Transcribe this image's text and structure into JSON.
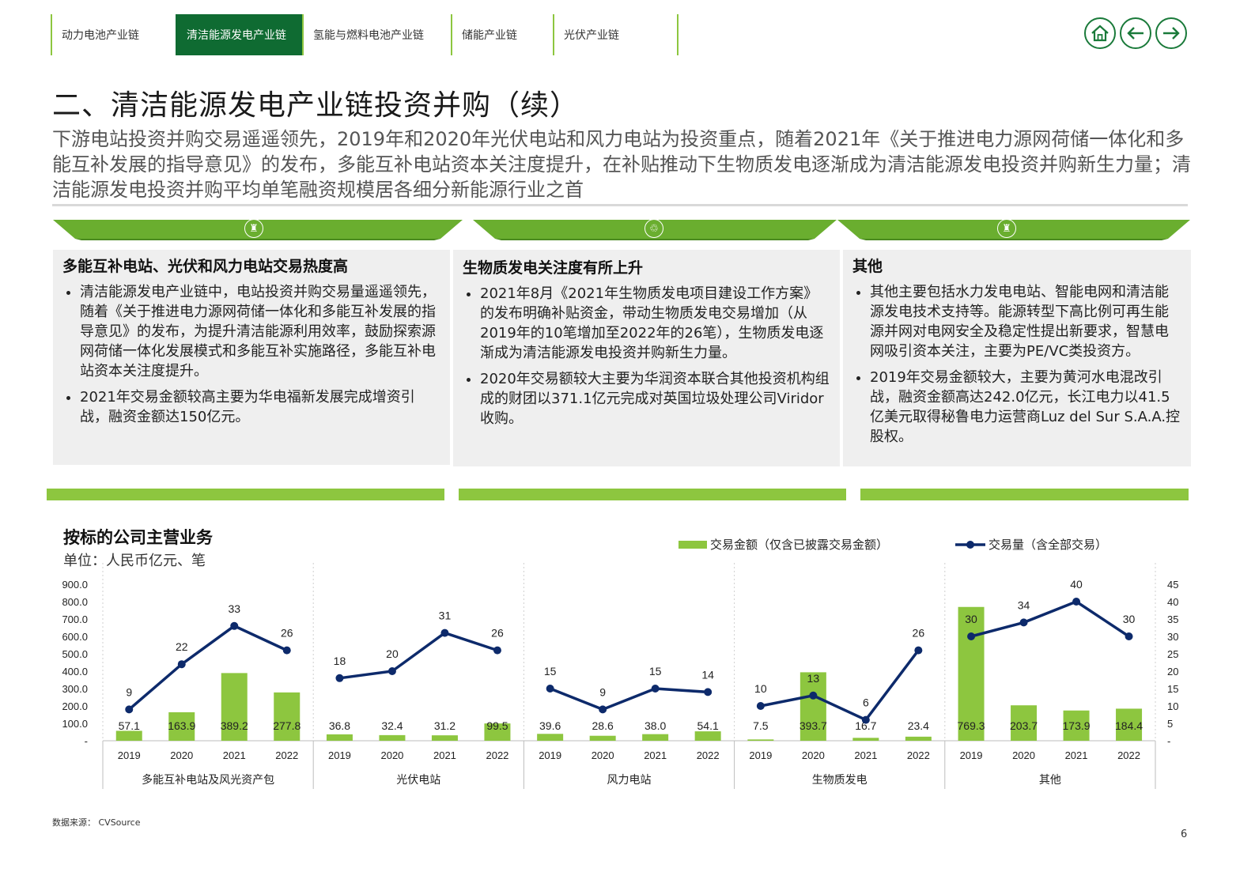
{
  "nav": {
    "tabs": [
      "动力电池产业链",
      "清洁能源发电产业链",
      "氢能与燃料电池产业链",
      "储能产业链",
      "光伏产业链"
    ],
    "active_index": 1,
    "buttons": [
      "home-icon",
      "arrow-left-icon",
      "arrow-right-icon"
    ]
  },
  "title": "二、清洁能源发电产业链投资并购（续）",
  "subtitle": "下游电站投资并购交易遥遥领先，2019年和2020年光伏电站和风力电站为投资重点，随着2021年《关于推进电力源网荷储一体化和多能互补发展的指导意见》的发布，多能互补电站资本关注度提升，在补贴推动下生物质发电逐渐成为清洁能源发电投资并购新生力量；清洁能源发电投资并购平均单笔融资规模居各细分新能源行业之首",
  "cards": [
    {
      "icon": "tower-icon",
      "heading": "多能互补电站、光伏和风力电站交易热度高",
      "bullets": [
        "清洁能源发电产业链中，电站投资并购交易量遥遥领先，随着《关于推进电力源网荷储一体化和多能互补发展的指导意见》的发布，为提升清洁能源利用效率，鼓励探索源网荷储一体化发展模式和多能互补实施路径，多能互补电站资本关注度提升。",
        "2021年交易金额较高主要为华电福新发展完成增资引战，融资金额达150亿元。"
      ]
    },
    {
      "icon": "recycle-icon",
      "heading": "生物质发电关注度有所上升",
      "bullets": [
        "2021年8月《2021年生物质发电项目建设工作方案》的发布明确补贴资金，带动生物质发电交易增加（从2019年的10笔增加至2022年的26笔），生物质发电逐渐成为清洁能源发电投资并购新生力量。",
        "2020年交易额较大主要为华润资本联合其他投资机构组成的财团以371.1亿元完成对英国垃圾处理公司Viridor收购。"
      ]
    },
    {
      "icon": "tower-icon",
      "heading": "其他",
      "bullets": [
        "其他主要包括水力发电电站、智能电网和清洁能源发电技术支持等。能源转型下高比例可再生能源并网对电网安全及稳定性提出新要求，智慧电网吸引资本关注，主要为PE/VC类投资方。",
        "2019年交易金额较大，主要为黄河水电混改引战，融资金额高达242.0亿元，长江电力以41.5亿美元取得秘鲁电力运营商Luz del Sur S.A.A.控股权。"
      ]
    }
  ],
  "chart_title": "按标的公司主营业务",
  "chart_unit": "单位：人民币亿元、笔",
  "chart_data": {
    "type": "bar+line",
    "groups": [
      "多能互补电站及风光资产包",
      "光伏电站",
      "风力电站",
      "生物质发电",
      "其他"
    ],
    "years": [
      "2019",
      "2020",
      "2021",
      "2022"
    ],
    "series": [
      {
        "name": "交易金额（仅含已披露交易金额）",
        "type": "bar",
        "axis": "left",
        "color": "#8dc63f",
        "values": [
          [
            57.1,
            163.9,
            389.2,
            277.8
          ],
          [
            36.8,
            32.4,
            31.2,
            99.5
          ],
          [
            39.6,
            28.6,
            38.0,
            54.1
          ],
          [
            7.5,
            393.7,
            16.7,
            23.4
          ],
          [
            769.3,
            203.7,
            173.9,
            184.4
          ]
        ],
        "labels": [
          [
            "57.1",
            "163.9",
            "389.2",
            "277.8"
          ],
          [
            "36.8",
            "32.4",
            "31.2",
            "99.5"
          ],
          [
            "39.6",
            "28.6",
            "38.0",
            "54.1"
          ],
          [
            "7.5",
            "393.7",
            "16.7",
            "23.4"
          ],
          [
            "769.3",
            "203.7",
            "173.9",
            "184.4"
          ]
        ]
      },
      {
        "name": "交易量（含全部交易）",
        "type": "line",
        "axis": "right",
        "color": "#0d2a6b",
        "values": [
          [
            9,
            22,
            33,
            26
          ],
          [
            18,
            20,
            31,
            26
          ],
          [
            15,
            9,
            15,
            14
          ],
          [
            10,
            13,
            6,
            26
          ],
          [
            30,
            34,
            40,
            30
          ]
        ]
      }
    ],
    "y_left": {
      "min": 0,
      "max": 900,
      "ticks": [
        "-",
        "100.0",
        "200.0",
        "300.0",
        "400.0",
        "500.0",
        "600.0",
        "700.0",
        "800.0",
        "900.0"
      ]
    },
    "y_right": {
      "min": 0,
      "max": 45,
      "ticks": [
        "-",
        "5",
        "10",
        "15",
        "20",
        "25",
        "30",
        "35",
        "40",
        "45"
      ]
    },
    "legend_position": "top-right"
  },
  "source": "数据来源：  CVSource",
  "page_number": "6"
}
